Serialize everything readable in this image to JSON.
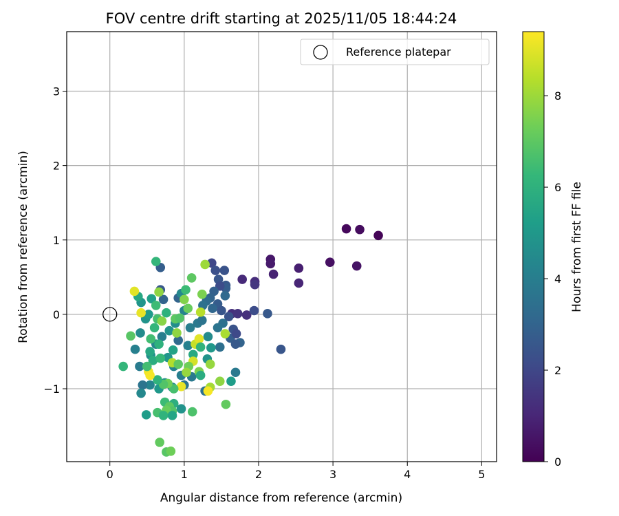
{
  "chart_data": {
    "type": "scatter",
    "title": "FOV centre drift starting at 2025/11/05 18:44:24",
    "xlabel": "Angular distance from reference (arcmin)",
    "ylabel": "Rotation from reference (arcmin)",
    "xlim": [
      -0.58,
      5.2
    ],
    "ylim": [
      -1.98,
      3.8
    ],
    "xticks": [
      0,
      1,
      2,
      3,
      4,
      5
    ],
    "yticks": [
      -1,
      0,
      1,
      2,
      3
    ],
    "ytick_labels": [
      "−1",
      "0",
      "1",
      "2",
      "3"
    ],
    "grid": true,
    "legend": {
      "position": "top-right",
      "entries": [
        "Reference platepar"
      ]
    },
    "reference_point": {
      "x": 0,
      "y": 0,
      "label": "Reference platepar"
    },
    "colorbar": {
      "label": "Hours from first FF file",
      "range": [
        0,
        9.4
      ],
      "ticks": [
        0,
        2,
        4,
        6,
        8
      ],
      "colormap": "viridis",
      "colormap_stops": [
        "#440154",
        "#482878",
        "#3e4a89",
        "#31688e",
        "#26828e",
        "#1f9e89",
        "#35b779",
        "#6ece58",
        "#b5de2b",
        "#fde725"
      ]
    },
    "points": [
      {
        "x": 3.18,
        "y": 1.15,
        "c": 0.2
      },
      {
        "x": 3.36,
        "y": 1.14,
        "c": 0.3
      },
      {
        "x": 3.61,
        "y": 1.06,
        "c": 0.1
      },
      {
        "x": 2.96,
        "y": 0.7,
        "c": 0.4
      },
      {
        "x": 3.32,
        "y": 0.65,
        "c": 0.5
      },
      {
        "x": 2.16,
        "y": 0.74,
        "c": 0.6
      },
      {
        "x": 2.16,
        "y": 0.68,
        "c": 0.7
      },
      {
        "x": 2.54,
        "y": 0.62,
        "c": 0.8
      },
      {
        "x": 2.2,
        "y": 0.54,
        "c": 0.9
      },
      {
        "x": 2.54,
        "y": 0.42,
        "c": 1.0
      },
      {
        "x": 1.78,
        "y": 0.47,
        "c": 1.1
      },
      {
        "x": 1.95,
        "y": 0.44,
        "c": 1.2
      },
      {
        "x": 1.95,
        "y": 0.4,
        "c": 1.5
      },
      {
        "x": 1.64,
        "y": 0.01,
        "c": 1.3
      },
      {
        "x": 1.72,
        "y": 0.01,
        "c": 1.4
      },
      {
        "x": 1.84,
        "y": -0.01,
        "c": 1.3
      },
      {
        "x": 1.94,
        "y": 0.05,
        "c": 2.2
      },
      {
        "x": 2.12,
        "y": 0.01,
        "c": 2.6
      },
      {
        "x": 2.3,
        "y": -0.47,
        "c": 2.5
      },
      {
        "x": 1.37,
        "y": 0.69,
        "c": 2.0
      },
      {
        "x": 1.42,
        "y": 0.59,
        "c": 2.3
      },
      {
        "x": 1.54,
        "y": 0.59,
        "c": 2.4
      },
      {
        "x": 1.46,
        "y": 0.47,
        "c": 2.5
      },
      {
        "x": 1.56,
        "y": 0.39,
        "c": 2.6
      },
      {
        "x": 1.56,
        "y": 0.35,
        "c": 2.8
      },
      {
        "x": 1.48,
        "y": 0.38,
        "c": 2.2
      },
      {
        "x": 1.4,
        "y": 0.31,
        "c": 2.9
      },
      {
        "x": 1.55,
        "y": 0.25,
        "c": 3.2
      },
      {
        "x": 1.35,
        "y": 0.22,
        "c": 3.0
      },
      {
        "x": 1.45,
        "y": 0.14,
        "c": 2.7
      },
      {
        "x": 1.3,
        "y": 0.18,
        "c": 3.3
      },
      {
        "x": 1.25,
        "y": 0.12,
        "c": 3.5
      },
      {
        "x": 1.38,
        "y": 0.08,
        "c": 3.1
      },
      {
        "x": 1.5,
        "y": 0.05,
        "c": 2.5
      },
      {
        "x": 1.6,
        "y": -0.03,
        "c": 2.4
      },
      {
        "x": 1.52,
        "y": -0.12,
        "c": 3.5
      },
      {
        "x": 1.45,
        "y": -0.18,
        "c": 3.6
      },
      {
        "x": 1.66,
        "y": -0.2,
        "c": 2.4
      },
      {
        "x": 1.62,
        "y": -0.32,
        "c": 2.8
      },
      {
        "x": 1.7,
        "y": -0.26,
        "c": 2.1
      },
      {
        "x": 1.75,
        "y": -0.38,
        "c": 3.0
      },
      {
        "x": 1.69,
        "y": -0.4,
        "c": 2.6
      },
      {
        "x": 1.48,
        "y": -0.44,
        "c": 3.4
      },
      {
        "x": 1.36,
        "y": -0.45,
        "c": 5.0
      },
      {
        "x": 1.31,
        "y": -0.6,
        "c": 4.8
      },
      {
        "x": 1.69,
        "y": -0.78,
        "c": 3.8
      },
      {
        "x": 1.63,
        "y": -0.9,
        "c": 5.2
      },
      {
        "x": 1.28,
        "y": -1.03,
        "c": 3.5
      },
      {
        "x": 0.68,
        "y": 0.63,
        "c": 2.8
      },
      {
        "x": 0.68,
        "y": 0.33,
        "c": 2.6
      },
      {
        "x": 0.72,
        "y": 0.2,
        "c": 3.0
      },
      {
        "x": 0.92,
        "y": 0.22,
        "c": 3.0
      },
      {
        "x": 0.96,
        "y": 0.28,
        "c": 4.4
      },
      {
        "x": 1.0,
        "y": 0.05,
        "c": 4.2
      },
      {
        "x": 1.08,
        "y": -0.18,
        "c": 4.0
      },
      {
        "x": 1.18,
        "y": -0.12,
        "c": 3.8
      },
      {
        "x": 1.24,
        "y": -0.08,
        "c": 3.6
      },
      {
        "x": 1.32,
        "y": -0.3,
        "c": 4.5
      },
      {
        "x": 0.88,
        "y": -0.12,
        "c": 4.6
      },
      {
        "x": 0.8,
        "y": -0.22,
        "c": 4.8
      },
      {
        "x": 0.92,
        "y": -0.35,
        "c": 3.2
      },
      {
        "x": 1.05,
        "y": -0.42,
        "c": 4.1
      },
      {
        "x": 0.7,
        "y": -0.3,
        "c": 4.0
      },
      {
        "x": 0.62,
        "y": -0.4,
        "c": 4.3
      },
      {
        "x": 0.55,
        "y": -0.55,
        "c": 4.6
      },
      {
        "x": 0.78,
        "y": -0.58,
        "c": 4.9
      },
      {
        "x": 0.86,
        "y": -0.7,
        "c": 4.2
      },
      {
        "x": 0.96,
        "y": -0.82,
        "c": 4.0
      },
      {
        "x": 1.1,
        "y": -0.84,
        "c": 3.8
      },
      {
        "x": 1.0,
        "y": -0.95,
        "c": 3.6
      },
      {
        "x": 0.84,
        "y": -0.98,
        "c": 4.4
      },
      {
        "x": 0.74,
        "y": -0.92,
        "c": 4.7
      },
      {
        "x": 0.66,
        "y": -1.0,
        "c": 5.0
      },
      {
        "x": 0.54,
        "y": -0.95,
        "c": 4.2
      },
      {
        "x": 0.44,
        "y": -0.95,
        "c": 3.6
      },
      {
        "x": 0.42,
        "y": -1.06,
        "c": 4.4
      },
      {
        "x": 0.4,
        "y": -0.7,
        "c": 3.9
      },
      {
        "x": 0.34,
        "y": -0.47,
        "c": 4.1
      },
      {
        "x": 0.41,
        "y": -0.25,
        "c": 4.5
      },
      {
        "x": 0.48,
        "y": -0.06,
        "c": 4.8
      },
      {
        "x": 0.52,
        "y": 0.0,
        "c": 5.1
      },
      {
        "x": 0.42,
        "y": 0.16,
        "c": 4.9
      },
      {
        "x": 0.38,
        "y": 0.24,
        "c": 5.6
      },
      {
        "x": 0.56,
        "y": 0.21,
        "c": 5.3
      },
      {
        "x": 0.62,
        "y": 0.12,
        "c": 6.4
      },
      {
        "x": 0.66,
        "y": 0.3,
        "c": 7.8
      },
      {
        "x": 0.62,
        "y": 0.71,
        "c": 6.2
      },
      {
        "x": 1.02,
        "y": 0.33,
        "c": 6.4
      },
      {
        "x": 1.1,
        "y": 0.49,
        "c": 7.0
      },
      {
        "x": 1.0,
        "y": 0.2,
        "c": 7.6
      },
      {
        "x": 1.28,
        "y": 0.67,
        "c": 8.0
      },
      {
        "x": 1.24,
        "y": 0.27,
        "c": 7.5
      },
      {
        "x": 1.22,
        "y": 0.03,
        "c": 8.4
      },
      {
        "x": 1.05,
        "y": 0.08,
        "c": 7.2
      },
      {
        "x": 0.76,
        "y": 0.02,
        "c": 6.0
      },
      {
        "x": 0.64,
        "y": -0.06,
        "c": 6.6
      },
      {
        "x": 0.7,
        "y": -0.09,
        "c": 7.7
      },
      {
        "x": 0.88,
        "y": -0.06,
        "c": 7.0
      },
      {
        "x": 0.94,
        "y": -0.05,
        "c": 6.8
      },
      {
        "x": 0.6,
        "y": -0.18,
        "c": 6.2
      },
      {
        "x": 0.55,
        "y": -0.33,
        "c": 6.5
      },
      {
        "x": 0.66,
        "y": -0.4,
        "c": 6.0
      },
      {
        "x": 0.54,
        "y": -0.5,
        "c": 5.6
      },
      {
        "x": 0.58,
        "y": -0.62,
        "c": 5.8
      },
      {
        "x": 0.68,
        "y": -0.59,
        "c": 6.3
      },
      {
        "x": 0.85,
        "y": -0.48,
        "c": 5.4
      },
      {
        "x": 0.9,
        "y": -0.25,
        "c": 7.8
      },
      {
        "x": 1.15,
        "y": -0.4,
        "c": 8.6
      },
      {
        "x": 1.2,
        "y": -0.33,
        "c": 9.0
      },
      {
        "x": 1.22,
        "y": -0.44,
        "c": 6.1
      },
      {
        "x": 1.12,
        "y": -0.54,
        "c": 5.7
      },
      {
        "x": 1.12,
        "y": -0.63,
        "c": 8.8
      },
      {
        "x": 1.06,
        "y": -0.7,
        "c": 7.3
      },
      {
        "x": 1.03,
        "y": -0.78,
        "c": 7.9
      },
      {
        "x": 1.2,
        "y": -0.77,
        "c": 7.5
      },
      {
        "x": 1.22,
        "y": -0.82,
        "c": 5.8
      },
      {
        "x": 1.35,
        "y": -0.67,
        "c": 7.9
      },
      {
        "x": 1.55,
        "y": -0.26,
        "c": 8.2
      },
      {
        "x": 1.48,
        "y": -0.9,
        "c": 7.8
      },
      {
        "x": 1.35,
        "y": -0.98,
        "c": 8.1
      },
      {
        "x": 1.32,
        "y": -1.03,
        "c": 9.3
      },
      {
        "x": 1.56,
        "y": -1.21,
        "c": 7.1
      },
      {
        "x": 0.84,
        "y": -0.65,
        "c": 8.3
      },
      {
        "x": 0.92,
        "y": -0.67,
        "c": 7.0
      },
      {
        "x": 0.96,
        "y": -0.97,
        "c": 9.1
      },
      {
        "x": 0.86,
        "y": -1.0,
        "c": 6.6
      },
      {
        "x": 0.78,
        "y": -0.93,
        "c": 7.3
      },
      {
        "x": 0.72,
        "y": -0.94,
        "c": 6.8
      },
      {
        "x": 0.64,
        "y": -0.88,
        "c": 6.1
      },
      {
        "x": 0.52,
        "y": -0.77,
        "c": 9.2
      },
      {
        "x": 0.54,
        "y": -0.82,
        "c": 9.3
      },
      {
        "x": 0.5,
        "y": -0.7,
        "c": 6.5
      },
      {
        "x": 0.18,
        "y": -0.7,
        "c": 6.2
      },
      {
        "x": 0.28,
        "y": -0.29,
        "c": 6.9
      },
      {
        "x": 0.42,
        "y": 0.02,
        "c": 9.1
      },
      {
        "x": 0.33,
        "y": 0.31,
        "c": 9.0
      },
      {
        "x": 0.74,
        "y": -1.18,
        "c": 6.4
      },
      {
        "x": 0.86,
        "y": -1.2,
        "c": 5.9
      },
      {
        "x": 0.8,
        "y": -1.24,
        "c": 7.0
      },
      {
        "x": 0.84,
        "y": -1.3,
        "c": 6.8
      },
      {
        "x": 0.76,
        "y": -1.29,
        "c": 7.2
      },
      {
        "x": 0.64,
        "y": -1.32,
        "c": 6.6
      },
      {
        "x": 0.72,
        "y": -1.36,
        "c": 6.1
      },
      {
        "x": 0.84,
        "y": -1.36,
        "c": 5.5
      },
      {
        "x": 0.96,
        "y": -1.27,
        "c": 4.8
      },
      {
        "x": 1.11,
        "y": -1.31,
        "c": 6.7
      },
      {
        "x": 0.49,
        "y": -1.35,
        "c": 5.2
      },
      {
        "x": 0.67,
        "y": -1.72,
        "c": 7.1
      },
      {
        "x": 0.76,
        "y": -1.85,
        "c": 6.9
      },
      {
        "x": 0.82,
        "y": -1.84,
        "c": 7.3
      }
    ]
  }
}
